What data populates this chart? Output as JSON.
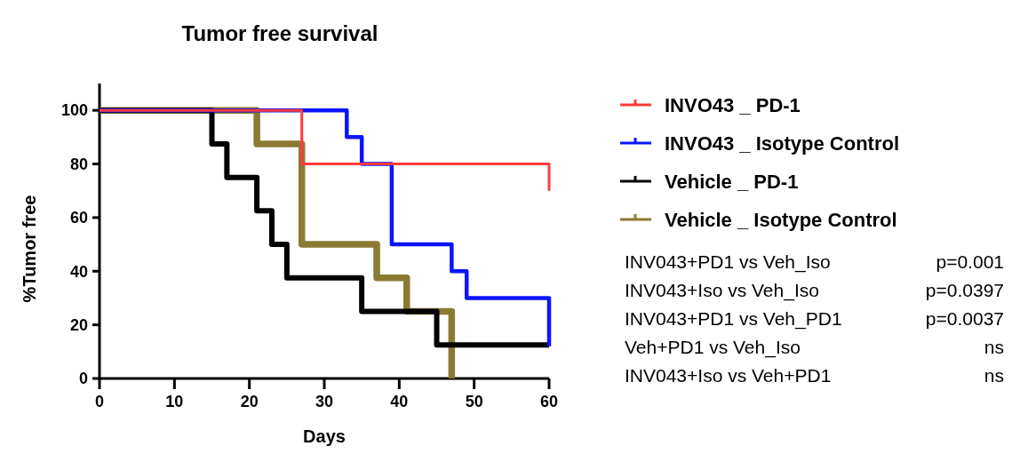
{
  "chart_data": {
    "type": "step",
    "title": "Tumor free survival",
    "xlabel": "Days",
    "ylabel": "%Tumor free",
    "xlim": [
      0,
      60
    ],
    "ylim": [
      0,
      110
    ],
    "xticks": [
      0,
      10,
      20,
      30,
      40,
      50,
      60
    ],
    "yticks": [
      0,
      20,
      40,
      60,
      80,
      100
    ],
    "legend": "right",
    "grid": false,
    "series": [
      {
        "name": "INVO43 _ PD-1",
        "color": "#ff3b3b",
        "x": [
          0,
          27,
          60,
          60
        ],
        "values": [
          100,
          80,
          80,
          70
        ]
      },
      {
        "name": "INVO43 _ Isotype Control",
        "color": "#0a14ff",
        "x": [
          0,
          33,
          35,
          39,
          47,
          49,
          60,
          60
        ],
        "values": [
          100,
          90,
          80,
          50,
          40,
          30,
          30,
          12
        ]
      },
      {
        "name": "Vehicle _ PD-1",
        "color": "#000000",
        "x": [
          0,
          15,
          17,
          21,
          23,
          25,
          35,
          45,
          60
        ],
        "values": [
          100,
          87.5,
          75,
          62.5,
          50,
          37.5,
          25,
          12.5,
          12.5
        ]
      },
      {
        "name": "Vehicle _ Isotype Control",
        "color": "#8b7a33",
        "x": [
          0,
          21,
          27,
          37,
          41,
          47
        ],
        "values": [
          100,
          87.5,
          50,
          37.5,
          25,
          0
        ]
      }
    ],
    "annotations": [
      "INV043+PD1 vs Veh_Iso",
      "p=0.001",
      "INV043+Iso vs Veh_Iso",
      "p=0.0397",
      "INV043+PD1 vs Veh_PD1",
      "p=0.0037",
      "Veh+PD1 vs Veh_Iso",
      "ns",
      "INV043+Iso vs Veh+PD1",
      "ns"
    ]
  }
}
